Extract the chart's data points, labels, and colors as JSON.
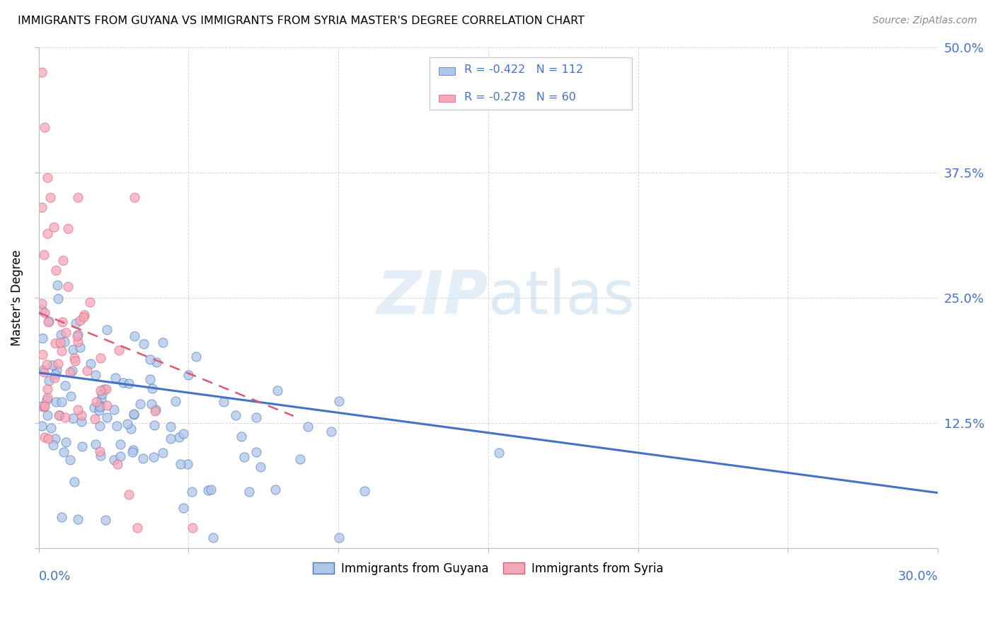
{
  "title": "IMMIGRANTS FROM GUYANA VS IMMIGRANTS FROM SYRIA MASTER'S DEGREE CORRELATION CHART",
  "source": "Source: ZipAtlas.com",
  "ylabel": "Master's Degree",
  "xlim": [
    0.0,
    0.3
  ],
  "ylim": [
    0.0,
    0.5
  ],
  "legend_r1": "-0.422",
  "legend_n1": "112",
  "legend_r2": "-0.278",
  "legend_n2": "60",
  "color_guyana": "#aec6e8",
  "color_syria": "#f4a7b9",
  "color_line_guyana": "#4472c4",
  "color_line_syria": "#e05870",
  "background": "#ffffff",
  "watermark_zip": "ZIP",
  "watermark_atlas": "atlas",
  "ytick_positions": [
    0.0,
    0.125,
    0.25,
    0.375,
    0.5
  ],
  "ytick_labels": [
    "",
    "12.5%",
    "25.0%",
    "37.5%",
    "50.0%"
  ],
  "xtick_positions": [
    0.0,
    0.05,
    0.1,
    0.15,
    0.2,
    0.25,
    0.3
  ]
}
